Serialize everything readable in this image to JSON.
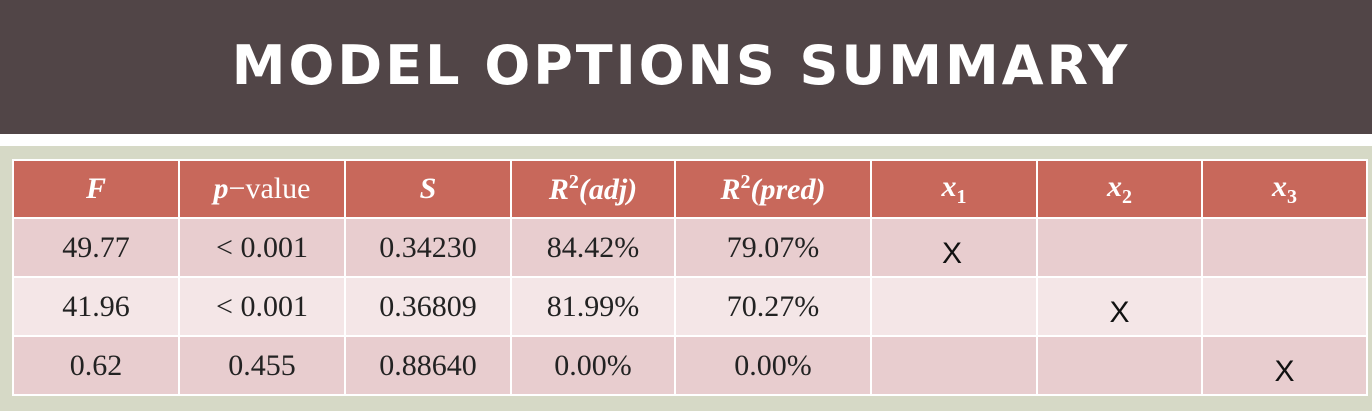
{
  "title": "MODEL OPTIONS SUMMARY",
  "headers": {
    "f": "F",
    "p_var": "p",
    "p_suffix": "−value",
    "s": "S",
    "r2adj_base": "R",
    "r2adj_sup": "2",
    "r2adj_suffix": "(adj)",
    "r2pred_base": "R",
    "r2pred_sup": "2",
    "r2pred_suffix": "(pred)",
    "x1_base": "x",
    "x1_sub": "1",
    "x2_base": "x",
    "x2_sub": "2",
    "x3_base": "x",
    "x3_sub": "3"
  },
  "rows": [
    {
      "f": "49.77",
      "p": "< 0.001",
      "s": "0.34230",
      "r2adj": "84.42%",
      "r2pred": "79.07%",
      "x1": "X",
      "x2": "",
      "x3": ""
    },
    {
      "f": "41.96",
      "p": "< 0.001",
      "s": "0.36809",
      "r2adj": "81.99%",
      "r2pred": "70.27%",
      "x1": "",
      "x2": "X",
      "x3": ""
    },
    {
      "f": "0.62",
      "p": "0.455",
      "s": "0.88640",
      "r2adj": "0.00%",
      "r2pred": "0.00%",
      "x1": "",
      "x2": "",
      "x3": "X"
    }
  ],
  "colors": {
    "title_bg": "#514547",
    "header_bg": "#c8685b",
    "row_dark": "#e8cdcf",
    "row_light": "#f4e6e7",
    "page_bg": "#d6d9c6"
  }
}
